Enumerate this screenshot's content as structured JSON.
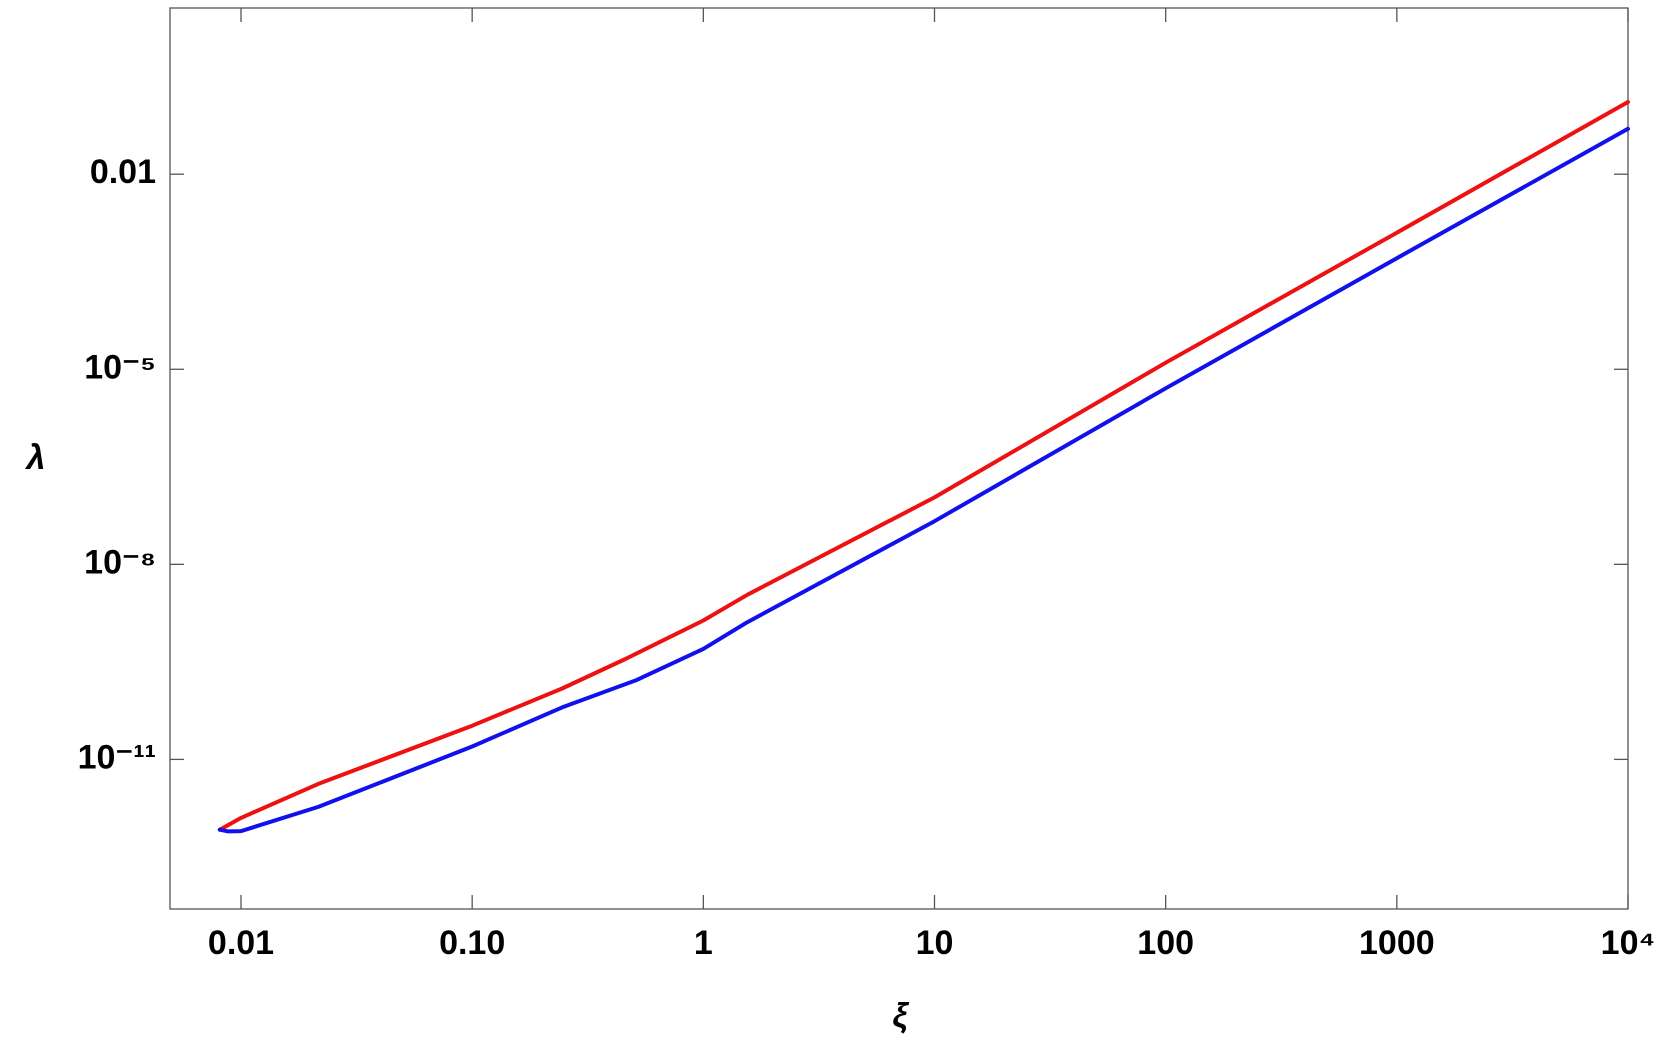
{
  "chart_data": {
    "type": "line",
    "xlabel": "ξ",
    "ylabel": "λ",
    "xlog": true,
    "ylog": true,
    "xlim": [
      0.00493,
      10000
    ],
    "ylim": [
      5e-14,
      3.6
    ],
    "xticks": [
      0.01,
      {
        "value": 0.1,
        "label": "0.10"
      },
      1,
      10,
      100,
      1000,
      {
        "value": 10000,
        "label": "10⁴"
      }
    ],
    "yticks": [
      0.01,
      {
        "value": 1e-05,
        "label": "10⁻⁵"
      },
      {
        "value": 1e-08,
        "label": "10⁻⁸"
      },
      {
        "value": 1e-11,
        "label": "10⁻¹¹"
      }
    ],
    "series": [
      {
        "color": "#ee1111",
        "x": [
          0.0081,
          0.01,
          0.0216,
          0.1,
          0.245,
          0.46,
          1,
          1.55,
          10,
          100,
          1000,
          10000
        ],
        "values": [
          8.3e-13,
          1.26e-12,
          4.2e-12,
          3.3e-11,
          1.23e-10,
          3.5e-10,
          1.37e-09,
          3.4e-09,
          1.07e-07,
          1.26e-05,
          0.00126,
          0.129
        ]
      },
      {
        "color": "#1111ee",
        "x": [
          0.0081,
          0.0088,
          0.01,
          0.0216,
          0.1,
          0.245,
          0.514,
          1,
          1.55,
          10,
          100,
          1000,
          10000
        ],
        "values": [
          8.3e-13,
          7.8e-13,
          7.9e-13,
          1.86e-12,
          1.58e-11,
          6.3e-11,
          1.66e-10,
          5e-10,
          1.29e-09,
          4.6e-08,
          5.1e-06,
          0.00051,
          0.05
        ]
      }
    ]
  }
}
